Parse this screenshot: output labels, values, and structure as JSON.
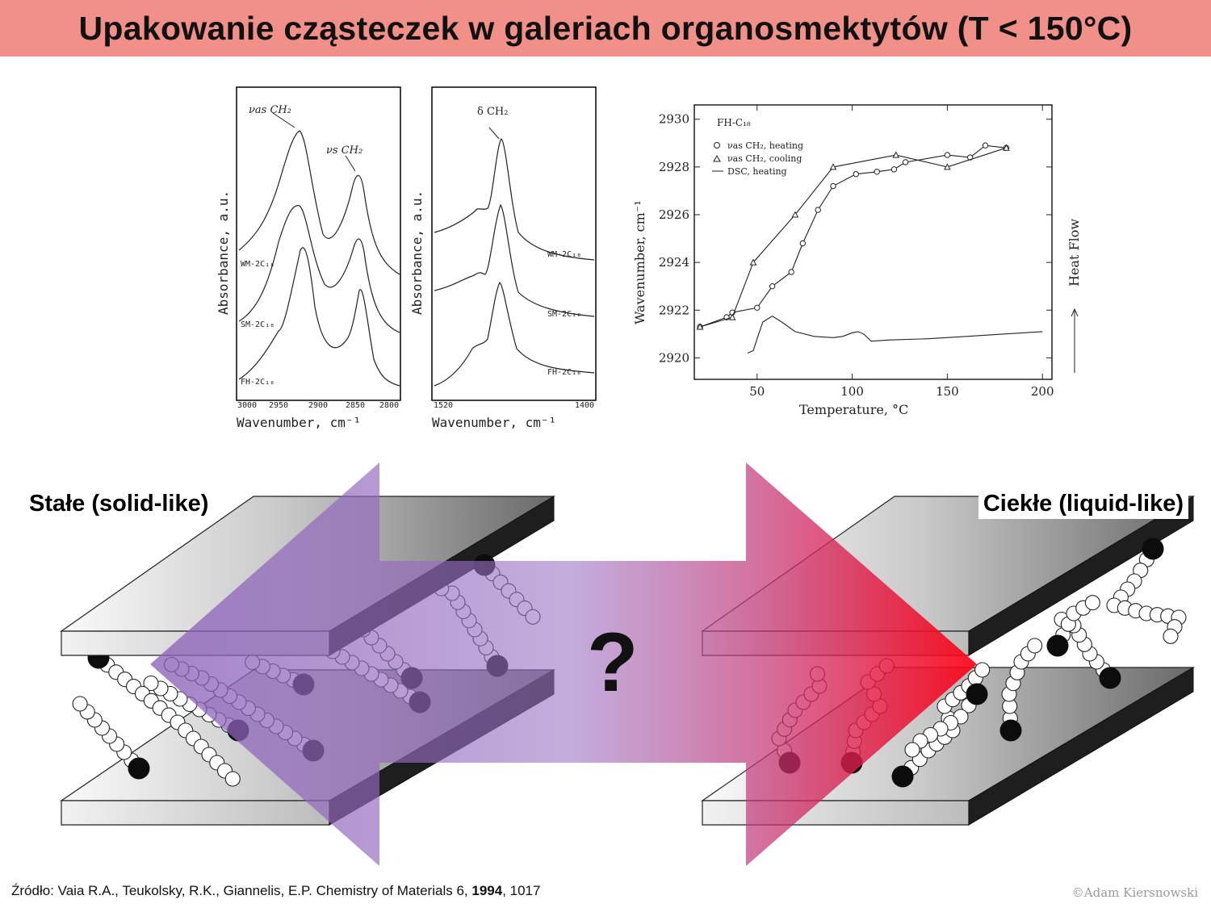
{
  "title": "Upakowanie cząsteczek w galeriach organosmektytów (T < 150°C)",
  "labels": {
    "solid": "Stałe (solid-like)",
    "liquid": "Ciekłe (liquid-like)",
    "question": "?"
  },
  "source": {
    "prefix": "Źródło: Vaia R.A., Teukolsky, R.K., Giannelis, E.P. Chemistry of Materials 6, ",
    "year": "1994",
    "suffix": ", 1017"
  },
  "copyright": "©Adam Kiersnowski",
  "colors": {
    "title_bg": "#f19089",
    "arrow_left": "#8e63b5",
    "arrow_right": "#e8001a"
  },
  "chart_data": [
    {
      "type": "line",
      "xlabel": "Wavenumber, cm⁻¹",
      "ylabel": "Absorbance, a.u.",
      "x_ticks": [
        "3000",
        "2950",
        "2900",
        "2850",
        "2800"
      ],
      "annotations": [
        "νas CH₂",
        "νs CH₂"
      ],
      "series": [
        {
          "name": "WM-2C₁₈"
        },
        {
          "name": "SM-2C₁₈"
        },
        {
          "name": "FH-2C₁₈"
        }
      ]
    },
    {
      "type": "line",
      "xlabel": "Wavenumber, cm⁻¹",
      "ylabel": "Absorbance, a.u.",
      "x_ticks": [
        "1520",
        "1400"
      ],
      "annotations": [
        "δ CH₂"
      ],
      "series": [
        {
          "name": "WM-2C₁₈"
        },
        {
          "name": "SM-2C₁₈"
        },
        {
          "name": "FH-2C₁₈"
        }
      ]
    },
    {
      "type": "line",
      "title": "FH-C₁₈",
      "xlabel": "Temperature, °C",
      "ylabel": "Wavenumber, cm⁻¹",
      "y2label": "Heat Flow",
      "xlim": [
        17,
        205
      ],
      "ylim": [
        2919.1,
        2930.6
      ],
      "x_ticks": [
        50,
        100,
        150,
        200
      ],
      "y_ticks": [
        2920,
        2922,
        2924,
        2926,
        2928,
        2930
      ],
      "series": [
        {
          "name": "νas CH₂, heating",
          "marker": "circle",
          "x": [
            20,
            34,
            37,
            50,
            58,
            68,
            74,
            82,
            90,
            102,
            113,
            122,
            128,
            150,
            162,
            170,
            181
          ],
          "y": [
            2921.3,
            2921.7,
            2921.9,
            2922.1,
            2923.0,
            2923.6,
            2924.8,
            2926.2,
            2927.2,
            2927.7,
            2927.8,
            2927.9,
            2928.2,
            2928.5,
            2928.4,
            2928.9,
            2928.8
          ]
        },
        {
          "name": "νas CH₂, cooling",
          "marker": "triangle",
          "x": [
            20,
            37,
            48,
            70,
            90,
            123,
            150,
            181
          ],
          "y": [
            2921.3,
            2921.7,
            2924.0,
            2926.0,
            2928.0,
            2928.5,
            2928.0,
            2928.8
          ]
        },
        {
          "name": "DSC, heating",
          "marker": "none",
          "x": [
            45,
            48,
            50,
            53,
            58,
            63,
            70,
            80,
            90,
            95,
            100,
            103,
            106,
            110,
            120,
            140,
            160,
            180,
            200
          ],
          "y": [
            2920.2,
            2920.3,
            2920.8,
            2921.5,
            2921.75,
            2921.5,
            2921.1,
            2920.9,
            2920.85,
            2920.9,
            2921.05,
            2921.1,
            2921.0,
            2920.7,
            2920.75,
            2920.8,
            2920.9,
            2921.0,
            2921.1
          ]
        }
      ]
    }
  ]
}
